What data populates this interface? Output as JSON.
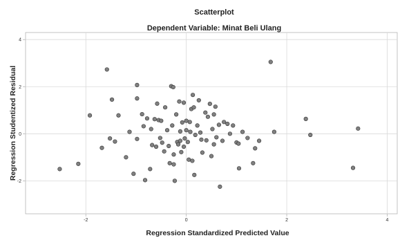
{
  "chart_data": {
    "type": "scatter",
    "title": "Scatterplot",
    "subtitle": "Dependent Variable: Minat Beli Ulang",
    "xlabel": "Regression Standardized Predicted Value",
    "ylabel": "Regression Studentized Residual",
    "xlim": [
      -3.2,
      4.2
    ],
    "ylim": [
      -3.4,
      4.3
    ],
    "xticks": [
      -2,
      0,
      2,
      4
    ],
    "yticks": [
      -2,
      0,
      2,
      4
    ],
    "xtick_labels": [
      "-2",
      "0",
      "2",
      "4"
    ],
    "ytick_labels": [
      "-2",
      "0",
      "2",
      "4"
    ],
    "grid": true,
    "point_fill": "#808080",
    "point_stroke": "#333333",
    "points": [
      [
        -2.52,
        -1.5
      ],
      [
        -2.15,
        -1.28
      ],
      [
        -1.92,
        0.78
      ],
      [
        -1.68,
        -0.6
      ],
      [
        -1.58,
        2.73
      ],
      [
        -1.52,
        -0.2
      ],
      [
        -1.48,
        1.45
      ],
      [
        -1.42,
        -0.33
      ],
      [
        -1.35,
        0.78
      ],
      [
        -1.2,
        -1.0
      ],
      [
        -1.13,
        0.08
      ],
      [
        -1.05,
        -1.7
      ],
      [
        -0.98,
        2.07
      ],
      [
        -0.98,
        -0.22
      ],
      [
        -0.98,
        1.5
      ],
      [
        -0.88,
        0.83
      ],
      [
        -0.85,
        0.32
      ],
      [
        -0.82,
        -1.97
      ],
      [
        -0.78,
        0.65
      ],
      [
        -0.72,
        -1.5
      ],
      [
        -0.7,
        0.2
      ],
      [
        -0.68,
        -0.48
      ],
      [
        -0.63,
        0.62
      ],
      [
        -0.6,
        -0.55
      ],
      [
        -0.58,
        1.28
      ],
      [
        -0.55,
        0.58
      ],
      [
        -0.52,
        -0.18
      ],
      [
        -0.5,
        0.55
      ],
      [
        -0.48,
        -0.38
      ],
      [
        -0.44,
        -0.75
      ],
      [
        -0.42,
        1.12
      ],
      [
        -0.38,
        0.15
      ],
      [
        -0.35,
        -0.52
      ],
      [
        -0.33,
        -1.25
      ],
      [
        -0.3,
        2.02
      ],
      [
        -0.28,
        0.35
      ],
      [
        -0.26,
        1.98
      ],
      [
        -0.25,
        -1.3
      ],
      [
        -0.25,
        -0.88
      ],
      [
        -0.23,
        -2.0
      ],
      [
        -0.2,
        0.82
      ],
      [
        -0.18,
        -0.35
      ],
      [
        -0.16,
        -0.45
      ],
      [
        -0.14,
        1.37
      ],
      [
        -0.12,
        -0.3
      ],
      [
        -0.12,
        0.1
      ],
      [
        -0.1,
        -0.78
      ],
      [
        -0.08,
        0.48
      ],
      [
        -0.05,
        -0.55
      ],
      [
        -0.05,
        1.32
      ],
      [
        -0.03,
        -0.2
      ],
      [
        0.0,
        0.15
      ],
      [
        0.0,
        0.55
      ],
      [
        0.03,
        -0.35
      ],
      [
        0.05,
        -1.1
      ],
      [
        0.07,
        0.5
      ],
      [
        0.08,
        0.08
      ],
      [
        0.1,
        1.05
      ],
      [
        0.12,
        -1.15
      ],
      [
        0.13,
        1.65
      ],
      [
        0.15,
        1.12
      ],
      [
        0.16,
        -1.75
      ],
      [
        0.18,
        -0.05
      ],
      [
        0.22,
        0.35
      ],
      [
        0.25,
        1.42
      ],
      [
        0.28,
        0.05
      ],
      [
        0.3,
        -0.25
      ],
      [
        0.32,
        -0.8
      ],
      [
        0.38,
        0.9
      ],
      [
        0.4,
        -0.28
      ],
      [
        0.43,
        0.72
      ],
      [
        0.47,
        1.27
      ],
      [
        0.5,
        -0.95
      ],
      [
        0.52,
        0.2
      ],
      [
        0.55,
        0.82
      ],
      [
        0.55,
        -0.45
      ],
      [
        0.58,
        1.15
      ],
      [
        0.6,
        -0.15
      ],
      [
        0.65,
        0.38
      ],
      [
        0.67,
        -2.25
      ],
      [
        0.72,
        -0.3
      ],
      [
        0.75,
        0.5
      ],
      [
        0.82,
        0.42
      ],
      [
        0.87,
        0.0
      ],
      [
        0.93,
        0.35
      ],
      [
        1.0,
        -0.37
      ],
      [
        1.04,
        -0.42
      ],
      [
        1.05,
        -1.47
      ],
      [
        1.12,
        0.08
      ],
      [
        1.22,
        -0.18
      ],
      [
        1.33,
        -1.25
      ],
      [
        1.37,
        -0.62
      ],
      [
        1.45,
        -0.3
      ],
      [
        1.68,
        3.05
      ],
      [
        1.75,
        0.08
      ],
      [
        2.38,
        0.63
      ],
      [
        2.47,
        -0.05
      ],
      [
        3.32,
        -1.45
      ],
      [
        3.42,
        0.22
      ]
    ]
  }
}
